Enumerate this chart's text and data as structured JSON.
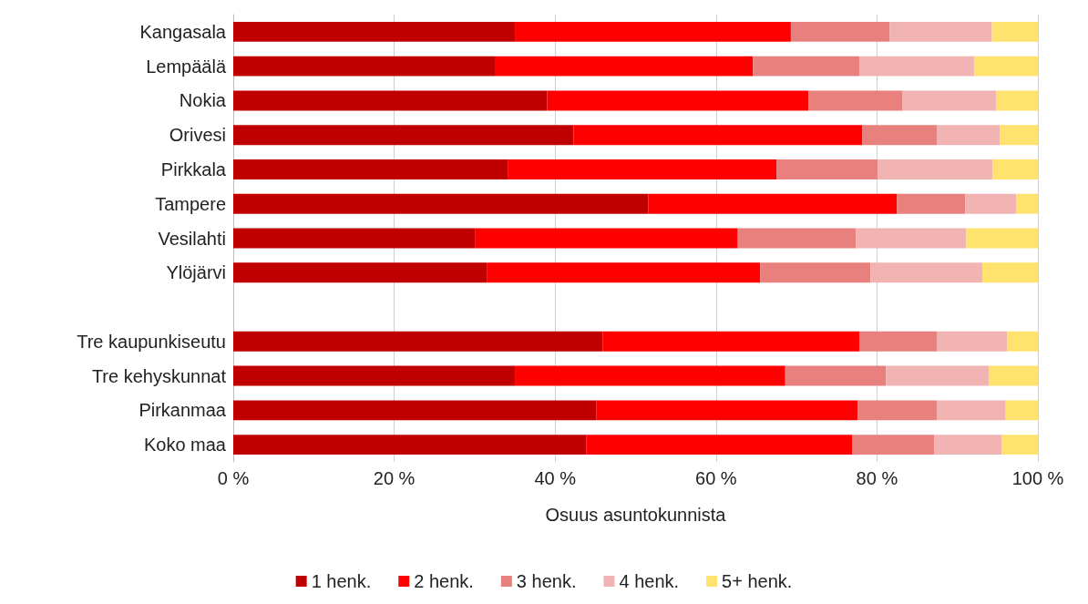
{
  "chart_data": {
    "type": "bar",
    "orientation": "horizontal",
    "stacked": true,
    "xlabel": "Osuus asuntokunnista",
    "categories": [
      "Kangasala",
      "Lempäälä",
      "Nokia",
      "Orivesi",
      "Pirkkala",
      "Tampere",
      "Vesilahti",
      "Ylöjärvi",
      null,
      "Tre kaupunkiseutu",
      "Tre kehyskunnat",
      "Pirkanmaa",
      "Koko maa"
    ],
    "series": [
      {
        "name": "1 henk.",
        "color": "#c00000",
        "values": [
          35.0,
          32.5,
          39.0,
          42.3,
          34.1,
          51.6,
          30.1,
          31.5,
          null,
          45.9,
          35.0,
          45.1,
          43.9
        ]
      },
      {
        "name": "2 henk.",
        "color": "#ff0000",
        "values": [
          34.3,
          32.1,
          32.5,
          35.9,
          33.4,
          30.9,
          32.6,
          34.0,
          null,
          31.9,
          33.6,
          32.5,
          33.0
        ]
      },
      {
        "name": "3 henk.",
        "color": "#e8807e",
        "values": [
          12.3,
          13.2,
          11.7,
          9.3,
          12.6,
          8.5,
          14.7,
          13.7,
          null,
          9.7,
          12.5,
          9.9,
          10.2
        ]
      },
      {
        "name": "4 henk.",
        "color": "#f2b3b3",
        "values": [
          12.7,
          14.3,
          11.6,
          7.8,
          14.3,
          6.3,
          13.7,
          13.9,
          null,
          8.7,
          12.8,
          8.5,
          8.4
        ]
      },
      {
        "name": "5+ henk.",
        "color": "#ffe36e",
        "values": [
          5.7,
          7.9,
          5.2,
          4.7,
          5.6,
          2.7,
          8.9,
          6.9,
          null,
          3.8,
          6.1,
          4.0,
          4.5
        ]
      }
    ],
    "xlim": [
      0,
      100
    ],
    "xticks": [
      {
        "value": 0,
        "label": "0 %"
      },
      {
        "value": 20,
        "label": "20 %"
      },
      {
        "value": 40,
        "label": "40 %"
      },
      {
        "value": 60,
        "label": "60 %"
      },
      {
        "value": 80,
        "label": "80 %"
      },
      {
        "value": 100,
        "label": "100 %"
      }
    ],
    "grid": "x",
    "legend": "bottom"
  }
}
